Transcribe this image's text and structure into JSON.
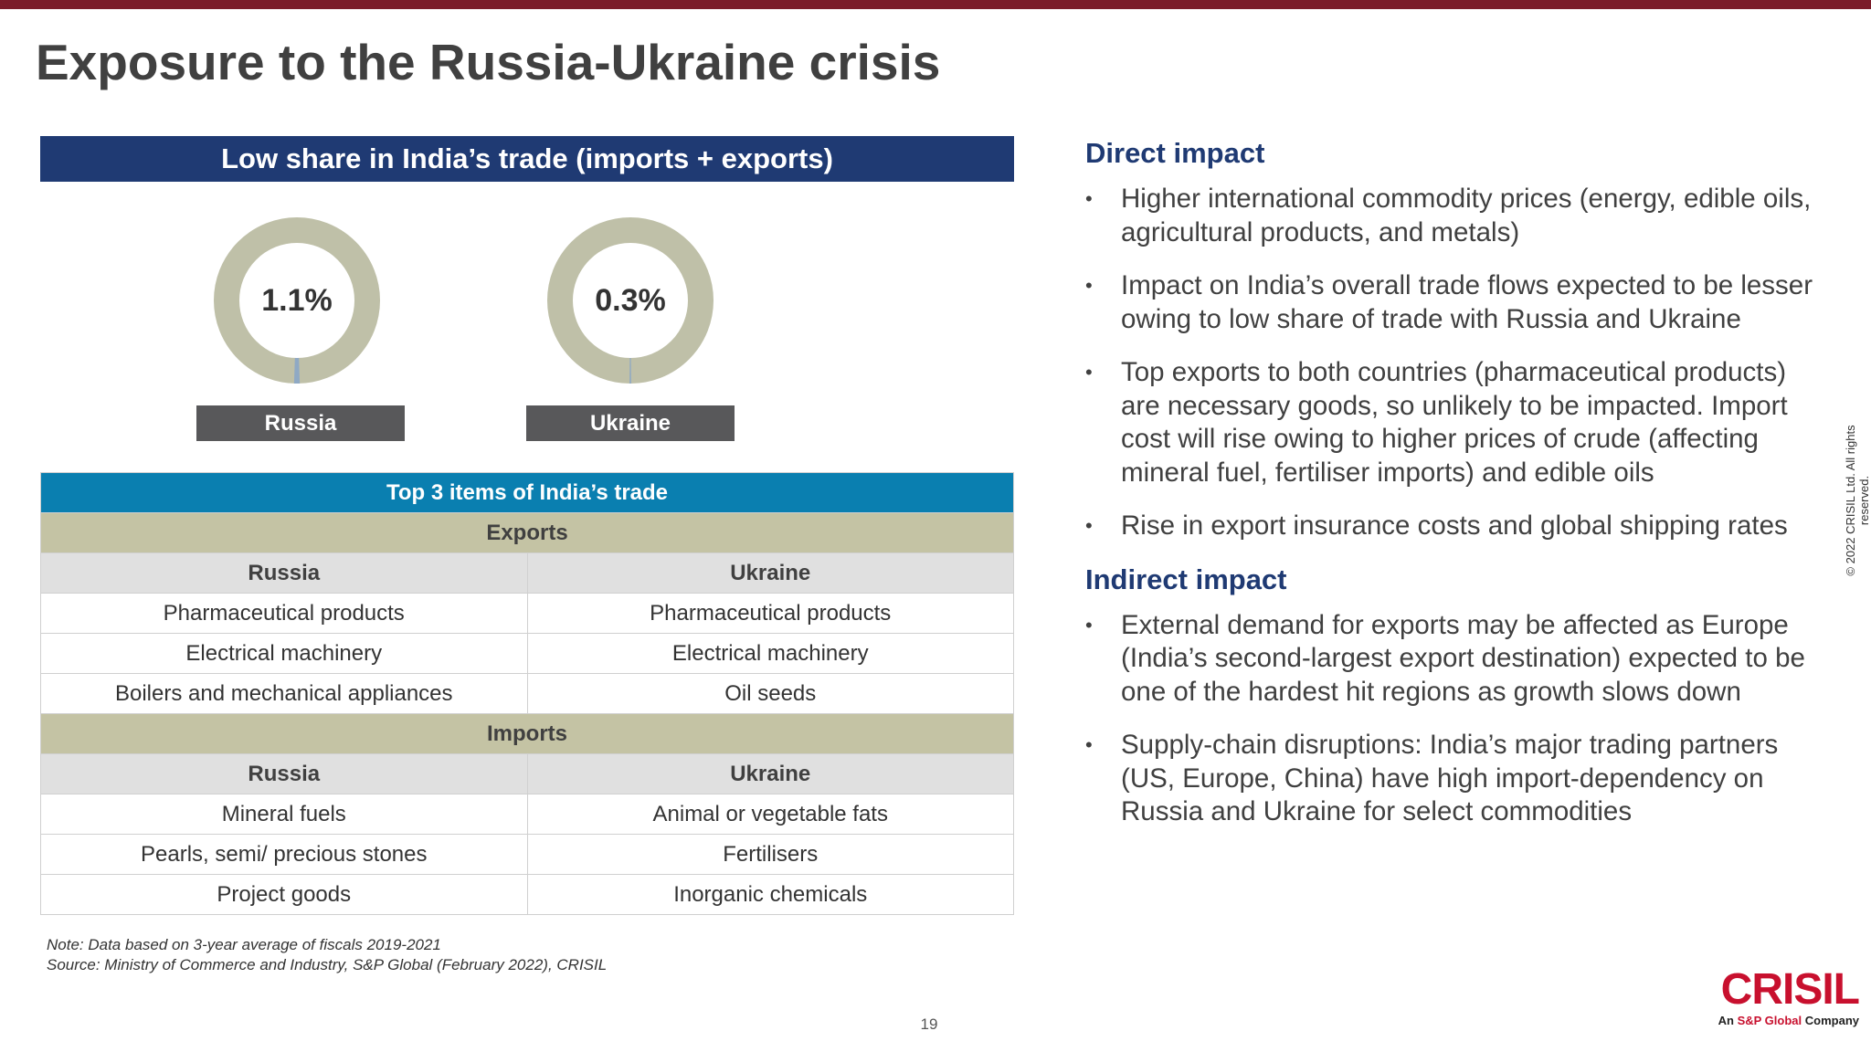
{
  "title": "Exposure to the Russia-Ukraine crisis",
  "share": {
    "header": "Low share in India’s trade (imports + exports)",
    "donuts": [
      {
        "name": "Russia",
        "value": 1.1,
        "value_label": "1.1%"
      },
      {
        "name": "Ukraine",
        "value": 0.3,
        "value_label": "0.3%"
      }
    ]
  },
  "table": {
    "title": "Top 3 items of India’s trade",
    "sections": [
      {
        "name": "Exports",
        "columns": [
          "Russia",
          "Ukraine"
        ],
        "rows": [
          [
            "Pharmaceutical products",
            "Pharmaceutical products"
          ],
          [
            "Electrical machinery",
            "Electrical machinery"
          ],
          [
            "Boilers and mechanical appliances",
            "Oil seeds"
          ]
        ]
      },
      {
        "name": "Imports",
        "columns": [
          "Russia",
          "Ukraine"
        ],
        "rows": [
          [
            "Mineral fuels",
            "Animal or vegetable fats"
          ],
          [
            "Pearls, semi/ precious stones",
            "Fertilisers"
          ],
          [
            "Project goods",
            "Inorganic chemicals"
          ]
        ]
      }
    ]
  },
  "notes": [
    "Note: Data based on 3-year average of fiscals 2019-2021",
    "Source: Ministry of Commerce and Industry, S&P Global (February 2022), CRISIL"
  ],
  "impacts": [
    {
      "heading": "Direct impact",
      "bullets": [
        "Higher international commodity prices (energy, edible oils, agricultural products, and metals)",
        "Impact on India’s overall trade flows expected to be lesser owing to low share of trade with Russia and Ukraine",
        "Top exports to both countries (pharmaceutical products) are necessary goods, so unlikely to be impacted. Import cost will rise owing to higher prices of crude (affecting mineral fuel, fertiliser imports) and edible oils",
        "Rise in export insurance costs and global shipping rates"
      ]
    },
    {
      "heading": "Indirect impact",
      "bullets": [
        "External demand for exports may be affected as Europe (India’s second-largest export destination) expected to be one of the hardest hit regions as growth slows down",
        "Supply-chain disruptions: India’s major trading partners (US, Europe, China) have high import-dependency on Russia and Ukraine for select commodities"
      ]
    }
  ],
  "page_number": "19",
  "copyright": "© 2022 CRISIL Ltd. All rights reserved.",
  "logo": {
    "name": "CRISIL",
    "tagline_prefix": "An",
    "tagline_brand": "S&P Global",
    "tagline_suffix": "Company"
  }
}
